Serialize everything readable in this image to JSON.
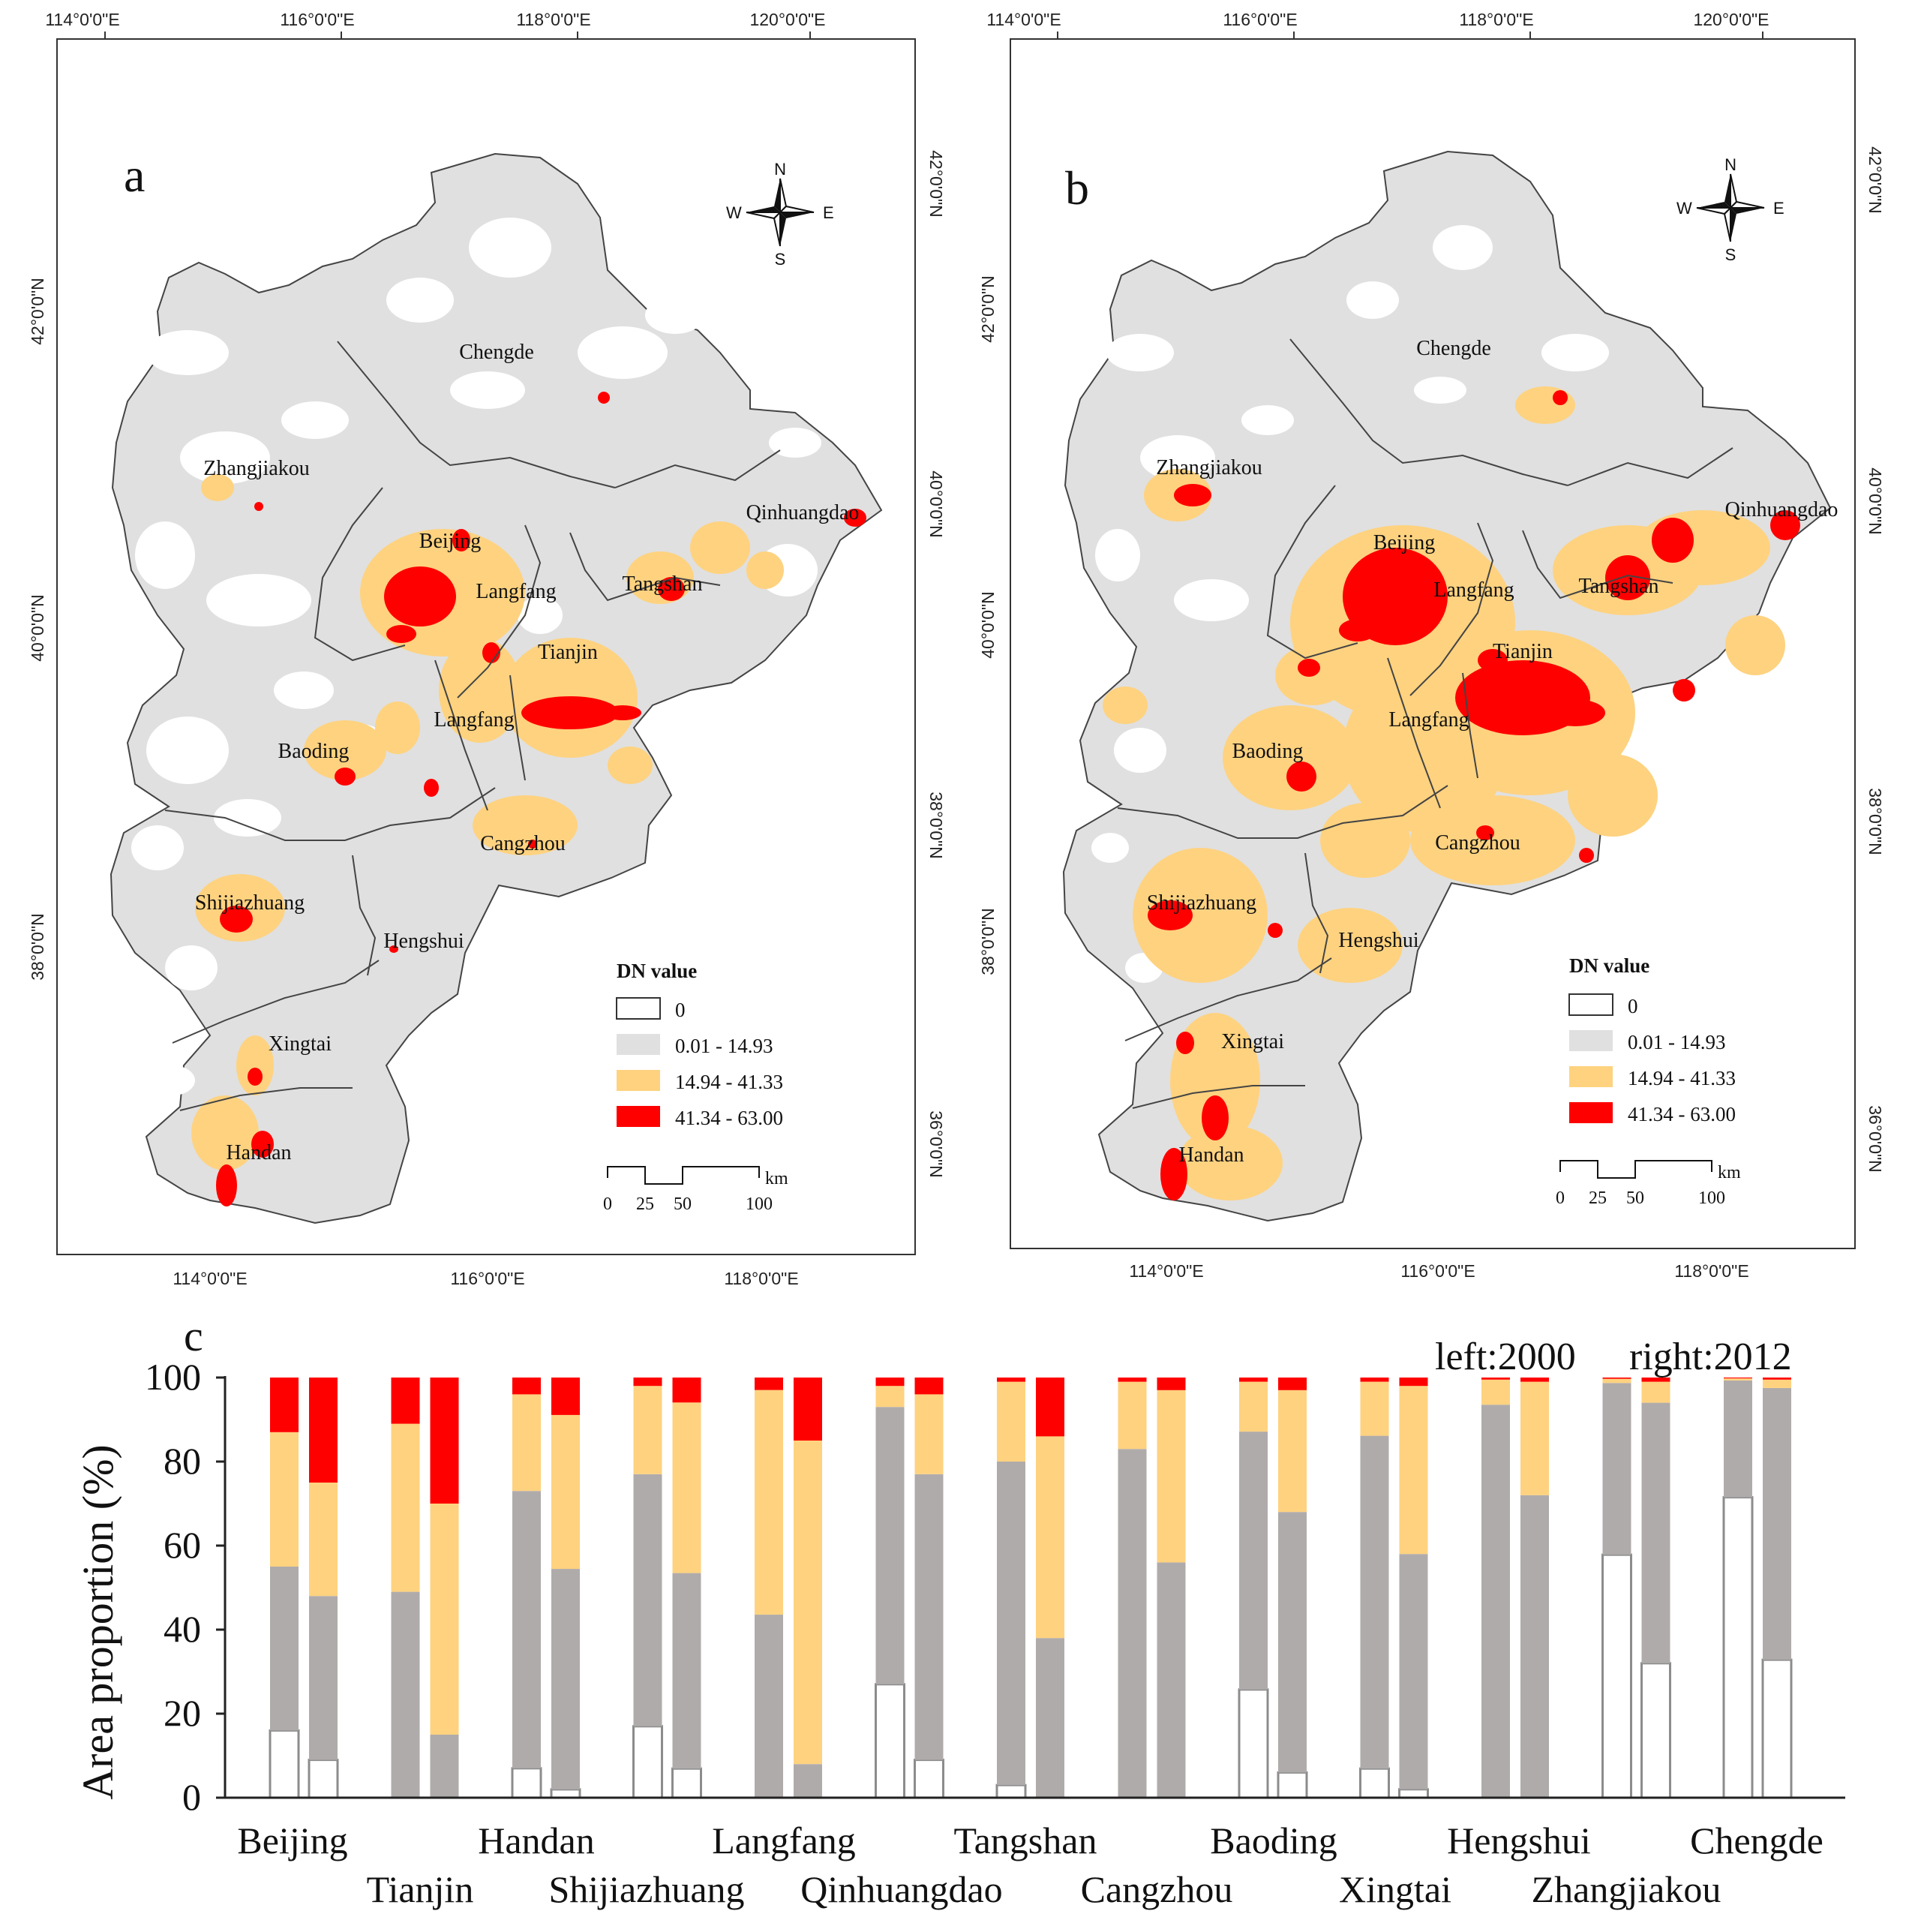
{
  "maps": [
    {
      "panel_label": "a",
      "top_ticks": [
        "114°0'0\"E",
        "116°0'0\"E",
        "118°0'0\"E",
        "120°0'0\"E"
      ],
      "bottom_ticks": [
        "114°0'0\"E",
        "116°0'0\"E",
        "118°0'0\"E"
      ],
      "left_ticks": [
        "42°0'0\"N",
        "40°0'0\"N",
        "38°0'0\"N"
      ],
      "right_ticks": [
        "42°0'0\"N",
        "40°0'0\"N",
        "38°0'0\"N",
        "36°0'0\"N"
      ],
      "city_labels": [
        "Chengde",
        "Zhangjiakou",
        "Qinhuangdao",
        "Beijing",
        "Langfang",
        "Tangshan",
        "Tianjin",
        "Langfang",
        "Baoding",
        "Cangzhou",
        "Shijiazhuang",
        "Hengshui",
        "Xingtai",
        "Handan"
      ]
    },
    {
      "panel_label": "b",
      "top_ticks": [
        "114°0'0\"E",
        "116°0'0\"E",
        "118°0'0\"E",
        "120°0'0\"E"
      ],
      "bottom_ticks": [
        "114°0'0\"E",
        "116°0'0\"E",
        "118°0'0\"E"
      ],
      "left_ticks": [
        "42°0'0\"N",
        "40°0'0\"N",
        "38°0'0\"N"
      ],
      "right_ticks": [
        "42°0'0\"N",
        "40°0'0\"N",
        "38°0'0\"N",
        "36°0'0\"N"
      ],
      "city_labels": [
        "Chengde",
        "Zhangjiakou",
        "Qinhuangdao",
        "Beijing",
        "Langfang",
        "Tangshan",
        "Tianjin",
        "Langfang",
        "Baoding",
        "Cangzhou",
        "Shijiazhuang",
        "Hengshui",
        "Xingtai",
        "Handan"
      ]
    }
  ],
  "compass": {
    "n": "N",
    "s": "S",
    "e": "E",
    "w": "W"
  },
  "legend": {
    "title": "DN value",
    "entries": [
      {
        "label": "0",
        "color": "#ffffff"
      },
      {
        "label": "0.01 - 14.93",
        "color": "#e0e0e0"
      },
      {
        "label": "14.94 - 41.33",
        "color": "#fed27f"
      },
      {
        "label": "41.34 - 63.00",
        "color": "#ff0000"
      }
    ]
  },
  "scalebar": {
    "ticks": [
      "0",
      "25",
      "50",
      "100"
    ],
    "unit": "km"
  },
  "colors": {
    "boundary": "#333333",
    "map_base": "#e0e0e0",
    "bar_outline": "#8c8c8c",
    "c0": "#ffffff",
    "c1": "#b0abab",
    "c2": "#fed27f",
    "c3": "#ff0000"
  },
  "chart_data": {
    "type": "bar",
    "stacked": true,
    "panel_label": "c",
    "note_left": "left:2000",
    "note_right": "right:2012",
    "ylabel": "Area proportion (%)",
    "ylim": [
      0,
      100
    ],
    "yticks": [
      "0",
      "20",
      "40",
      "60",
      "80",
      "100"
    ],
    "categories": [
      "Beijing",
      "Tianjin",
      "Handan",
      "Shijiazhuang",
      "Langfang",
      "Qinhuangdao",
      "Tangshan",
      "Cangzhou",
      "Baoding",
      "Xingtai",
      "Hengshui",
      "Zhangjiakou",
      "Chengde"
    ],
    "years": [
      "2000",
      "2012"
    ],
    "classes": [
      "0",
      "0.01 - 14.93",
      "14.94 - 41.33",
      "41.34 - 63.00"
    ],
    "series": [
      {
        "name": "2000",
        "class_values": [
          [
            16,
            39,
            32,
            13
          ],
          [
            0,
            49,
            40,
            11
          ],
          [
            7,
            66,
            23,
            4
          ],
          [
            17,
            60,
            21,
            2
          ],
          [
            0,
            44,
            54,
            3
          ],
          [
            27,
            66,
            5,
            2
          ],
          [
            3,
            77,
            19,
            1
          ],
          [
            0,
            83,
            16,
            1
          ],
          [
            26,
            62,
            12,
            1
          ],
          [
            7,
            80,
            13,
            1
          ],
          [
            0,
            94,
            6,
            0.5
          ],
          [
            58,
            41,
            1,
            0.3
          ],
          [
            72,
            28,
            0.5,
            0.2
          ]
        ]
      },
      {
        "name": "2012",
        "class_values": [
          [
            9,
            39,
            27,
            25
          ],
          [
            0,
            15,
            55,
            30
          ],
          [
            2,
            53,
            37,
            9
          ],
          [
            7,
            47,
            41,
            6
          ],
          [
            0,
            8,
            77,
            15
          ],
          [
            9,
            68,
            19,
            4
          ],
          [
            0,
            38,
            48,
            14
          ],
          [
            0,
            56,
            41,
            3
          ],
          [
            6,
            62,
            29,
            3
          ],
          [
            2,
            56,
            40,
            2
          ],
          [
            0,
            72,
            27,
            1
          ],
          [
            32,
            62,
            5,
            1
          ],
          [
            33,
            65,
            2,
            0.5
          ]
        ]
      }
    ]
  }
}
